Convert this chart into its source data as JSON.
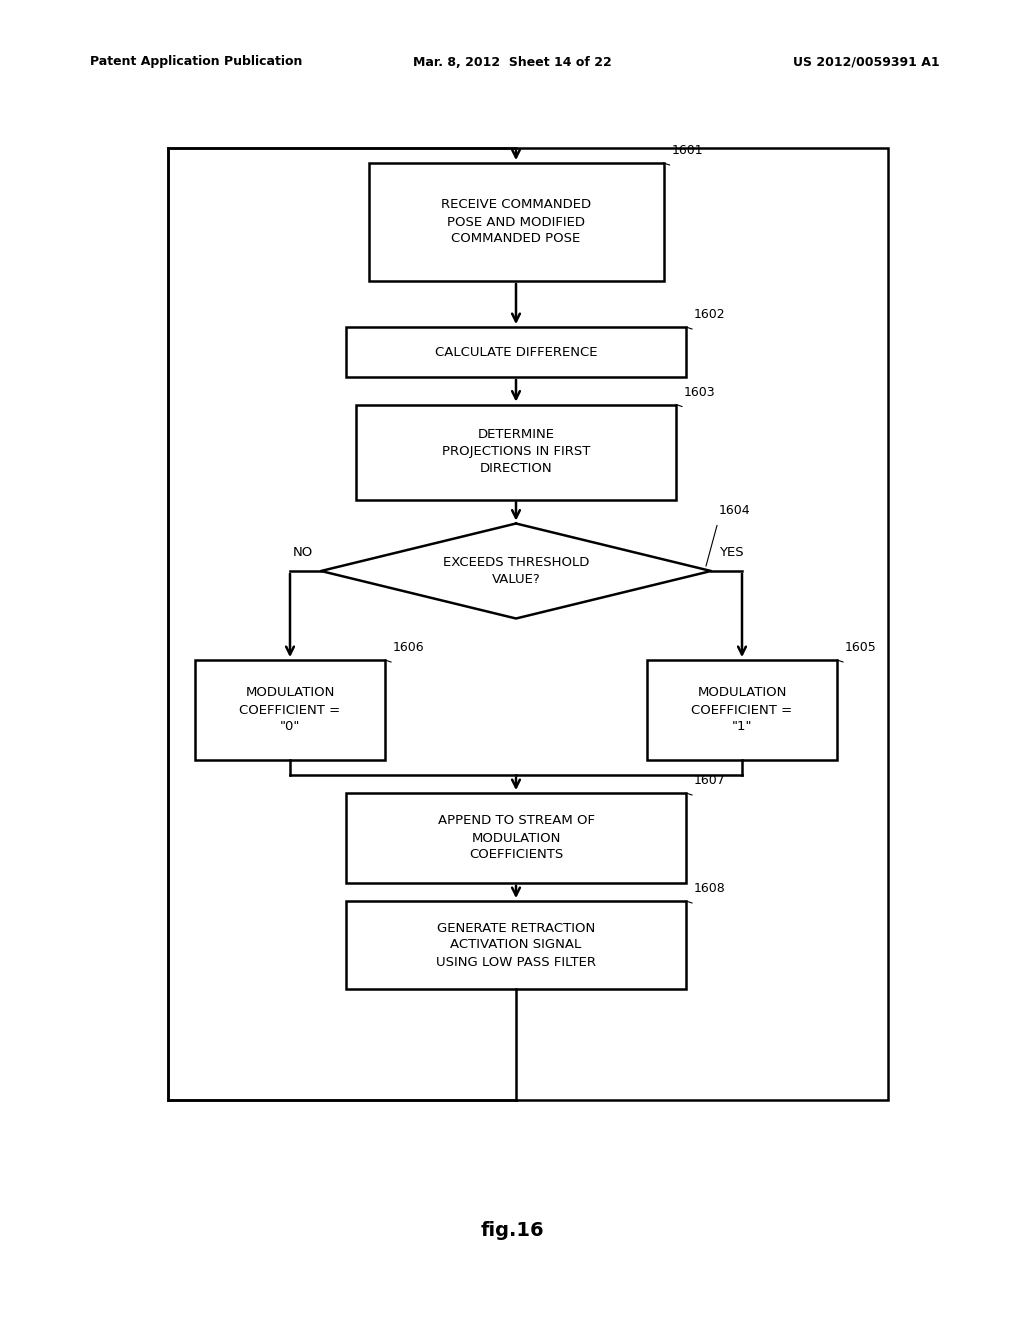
{
  "header_left": "Patent Application Publication",
  "header_mid": "Mar. 8, 2012  Sheet 14 of 22",
  "header_right": "US 2012/0059391 A1",
  "figure_label": "fig.16",
  "bg_color": "#ffffff",
  "line_color": "#000000",
  "font_size_node": 9.5,
  "font_size_tag": 9,
  "font_size_header": 9,
  "font_size_fig": 14
}
